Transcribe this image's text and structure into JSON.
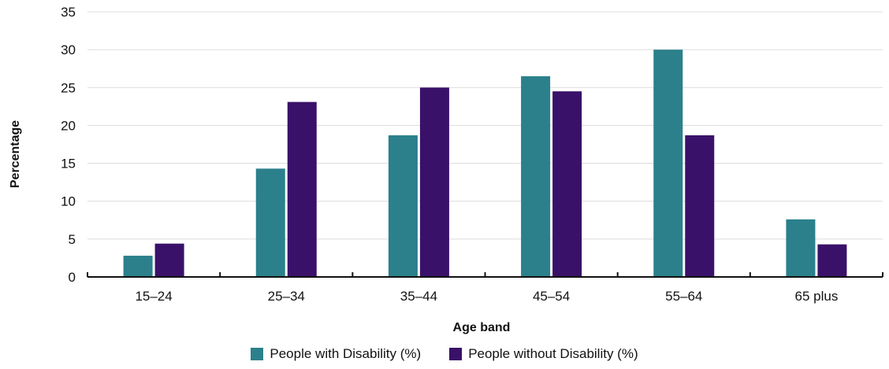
{
  "chart_data": {
    "type": "bar",
    "categories": [
      "15–24",
      "25–34",
      "35–44",
      "45–54",
      "55–64",
      "65 plus"
    ],
    "series": [
      {
        "name": "People with Disability (%)",
        "values": [
          2.8,
          14.3,
          18.7,
          26.5,
          30.0,
          7.6
        ],
        "color": "#2b808c"
      },
      {
        "name": "People without Disability (%)",
        "values": [
          4.4,
          23.1,
          25.0,
          24.5,
          18.7,
          4.3
        ],
        "color": "#3a1169"
      }
    ],
    "xlabel": "Age band",
    "ylabel": "Percentage",
    "ylim": [
      0,
      35
    ],
    "yticks": [
      0,
      5,
      10,
      15,
      20,
      25,
      30,
      35
    ],
    "grid": true,
    "legend_position": "bottom"
  }
}
